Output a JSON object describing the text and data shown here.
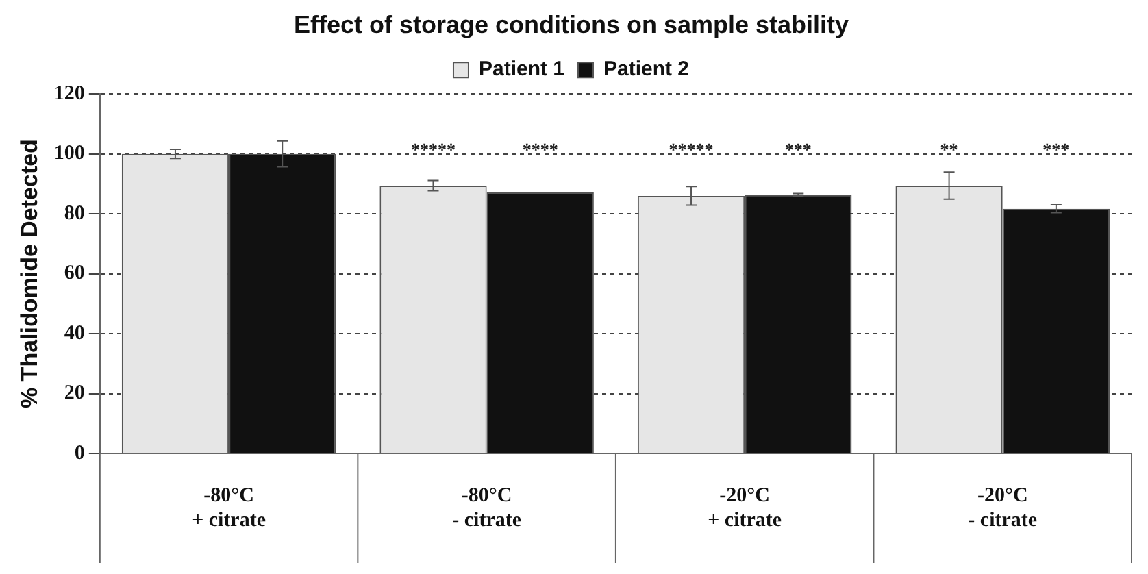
{
  "chart_data": {
    "type": "bar",
    "title": "Effect of storage conditions on sample stability",
    "ylabel": "% Thalidomide Detected",
    "categories": [
      "-80°C\n+ citrate",
      "-80°C\n- citrate",
      "-20°C\n+ citrate",
      "-20°C\n- citrate"
    ],
    "series": [
      {
        "name": "Patient 1",
        "color": "#e6e6e6",
        "values": [
          100,
          89.4,
          86.0,
          89.4
        ],
        "errors": [
          1.5,
          1.7,
          3.1,
          4.5
        ],
        "value_labels": [
          null,
          "*****",
          "*****",
          "**"
        ]
      },
      {
        "name": "Patient 2",
        "color": "#111111",
        "values": [
          100,
          87.1,
          86.4,
          81.7
        ],
        "errors": [
          4.3,
          null,
          0.4,
          1.3
        ],
        "value_labels": [
          null,
          "****",
          "***",
          "***"
        ]
      }
    ],
    "ylim": [
      0,
      120
    ],
    "yticks": [
      0,
      20,
      40,
      60,
      80,
      100,
      120
    ],
    "grid": "y",
    "legend": "top"
  }
}
